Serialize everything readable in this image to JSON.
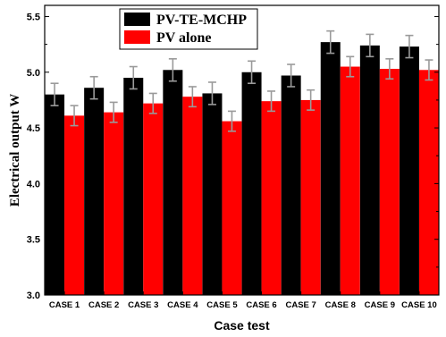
{
  "chart_data": {
    "type": "bar",
    "title": "",
    "xlabel": "Case test",
    "ylabel": "Electrical output W",
    "ylim": [
      3.0,
      5.6
    ],
    "yticks": [
      "3.0",
      "3.5",
      "4.0",
      "4.5",
      "5.0",
      "5.5"
    ],
    "grid": false,
    "legend_position": "top-left",
    "categories": [
      "CASE 1",
      "CASE 2",
      "CASE 3",
      "CASE 4",
      "CASE 5",
      "CASE 6",
      "CASE 7",
      "CASE 8",
      "CASE 9",
      "CASE 10"
    ],
    "series": [
      {
        "name": "PV-TE-MCHP",
        "color": "#000000",
        "values": [
          4.8,
          4.86,
          4.95,
          5.02,
          4.81,
          5.0,
          4.97,
          5.27,
          5.24,
          5.23
        ],
        "errors": [
          0.1,
          0.1,
          0.1,
          0.1,
          0.1,
          0.1,
          0.1,
          0.1,
          0.1,
          0.1
        ]
      },
      {
        "name": "PV alone",
        "color": "#ff0000",
        "values": [
          4.61,
          4.64,
          4.72,
          4.78,
          4.56,
          4.74,
          4.75,
          5.05,
          5.03,
          5.02
        ],
        "errors": [
          0.09,
          0.09,
          0.09,
          0.09,
          0.09,
          0.09,
          0.09,
          0.09,
          0.09,
          0.09
        ]
      }
    ]
  }
}
